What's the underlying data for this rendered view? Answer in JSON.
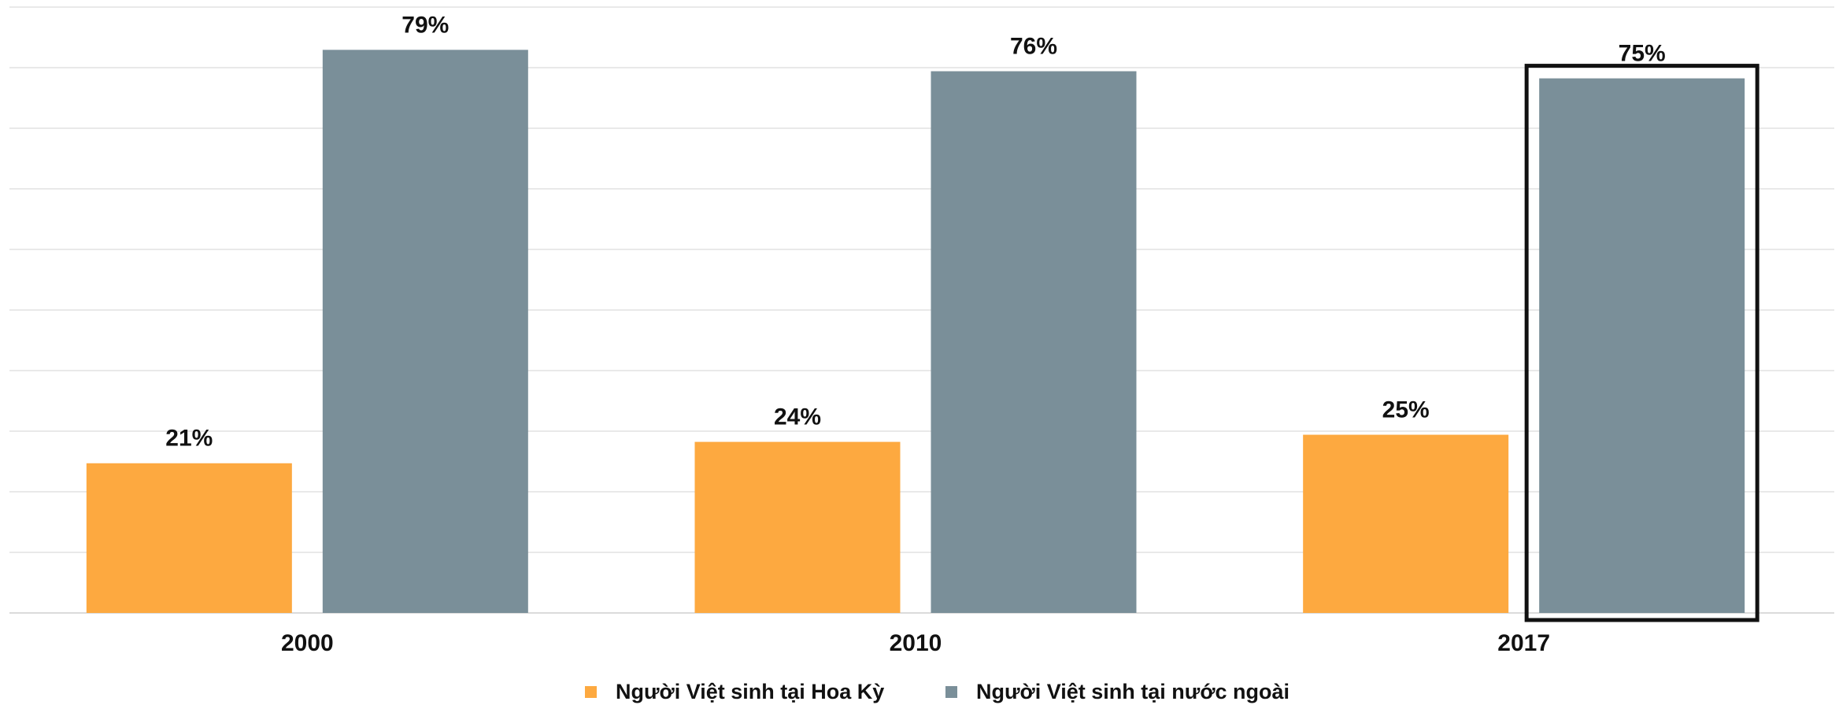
{
  "chart_data": {
    "type": "bar",
    "categories": [
      "2000",
      "2010",
      "2017"
    ],
    "series": [
      {
        "name": "Người Việt sinh tại Hoa Kỳ",
        "color": "#fda940",
        "values": [
          21,
          24,
          25
        ],
        "value_labels": [
          "21%",
          "24%",
          "25%"
        ]
      },
      {
        "name": "Người Việt sinh tại nước ngoài",
        "color": "#7a8f99",
        "values": [
          79,
          76,
          75
        ],
        "value_labels": [
          "79%",
          "76%",
          "75%"
        ]
      }
    ],
    "ylim": [
      0,
      85
    ],
    "grid": true,
    "legend": "bottom"
  }
}
